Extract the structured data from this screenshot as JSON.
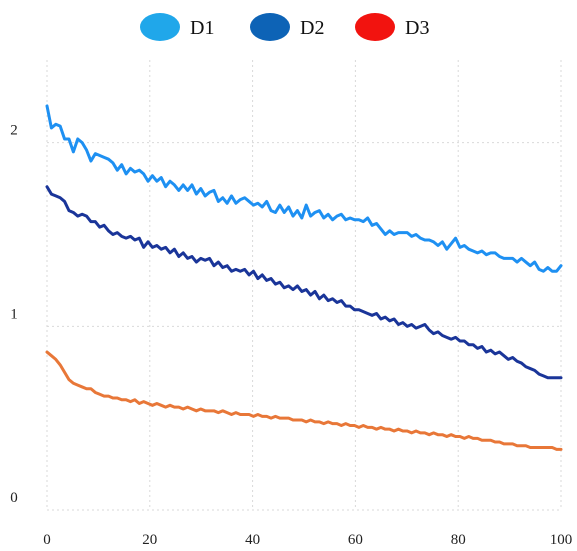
{
  "chart_data": {
    "type": "line",
    "title": "",
    "xlabel": "",
    "ylabel": "",
    "xlim": [
      0,
      100
    ],
    "ylim": [
      0,
      2.45
    ],
    "x_ticks": [
      0,
      20,
      40,
      60,
      80,
      100
    ],
    "x_tick_labels": [
      "0",
      "20",
      "40",
      "60",
      "80",
      "100"
    ],
    "y_ticks": [
      0,
      1,
      2
    ],
    "y_tick_labels": [
      "0",
      "1",
      "2"
    ],
    "grid": true,
    "legend": {
      "placement": "top-center",
      "entries": [
        {
          "name": "D1",
          "marker_color": "#20a7ea"
        },
        {
          "name": "D2",
          "marker_color": "#0d63b6"
        },
        {
          "name": "D3",
          "marker_color": "#f2130f"
        }
      ]
    },
    "x_step": 1,
    "series": [
      {
        "name": "D1",
        "color": "#1e90f2",
        "values": [
          2.2,
          2.08,
          2.1,
          2.09,
          2.02,
          2.02,
          1.95,
          2.02,
          2.0,
          1.96,
          1.9,
          1.94,
          1.93,
          1.92,
          1.91,
          1.89,
          1.85,
          1.88,
          1.83,
          1.86,
          1.84,
          1.85,
          1.83,
          1.79,
          1.82,
          1.79,
          1.81,
          1.76,
          1.79,
          1.77,
          1.74,
          1.77,
          1.74,
          1.77,
          1.72,
          1.75,
          1.71,
          1.73,
          1.74,
          1.68,
          1.7,
          1.67,
          1.71,
          1.67,
          1.69,
          1.7,
          1.68,
          1.66,
          1.67,
          1.65,
          1.68,
          1.63,
          1.62,
          1.66,
          1.62,
          1.65,
          1.6,
          1.63,
          1.59,
          1.66,
          1.6,
          1.62,
          1.63,
          1.59,
          1.61,
          1.58,
          1.6,
          1.61,
          1.58,
          1.59,
          1.58,
          1.58,
          1.57,
          1.59,
          1.55,
          1.56,
          1.53,
          1.5,
          1.52,
          1.5,
          1.51,
          1.51,
          1.51,
          1.49,
          1.5,
          1.48,
          1.47,
          1.47,
          1.46,
          1.44,
          1.46,
          1.42,
          1.45,
          1.48,
          1.43,
          1.44,
          1.42,
          1.41,
          1.4,
          1.41,
          1.39,
          1.4,
          1.4,
          1.38,
          1.37,
          1.37,
          1.37,
          1.35,
          1.37,
          1.35,
          1.33,
          1.35,
          1.31,
          1.3,
          1.32,
          1.3,
          1.3,
          1.33
        ]
      },
      {
        "name": "D2",
        "color": "#1a3599",
        "values": [
          1.76,
          1.72,
          1.71,
          1.7,
          1.68,
          1.63,
          1.62,
          1.6,
          1.61,
          1.6,
          1.57,
          1.57,
          1.54,
          1.55,
          1.52,
          1.5,
          1.51,
          1.49,
          1.48,
          1.49,
          1.47,
          1.48,
          1.43,
          1.46,
          1.43,
          1.44,
          1.42,
          1.43,
          1.4,
          1.42,
          1.38,
          1.4,
          1.37,
          1.38,
          1.35,
          1.37,
          1.36,
          1.37,
          1.33,
          1.35,
          1.32,
          1.33,
          1.3,
          1.31,
          1.3,
          1.31,
          1.28,
          1.3,
          1.26,
          1.28,
          1.25,
          1.26,
          1.23,
          1.24,
          1.21,
          1.22,
          1.2,
          1.22,
          1.19,
          1.2,
          1.17,
          1.19,
          1.15,
          1.17,
          1.14,
          1.15,
          1.13,
          1.14,
          1.11,
          1.11,
          1.09,
          1.09,
          1.08,
          1.07,
          1.06,
          1.07,
          1.04,
          1.05,
          1.03,
          1.04,
          1.01,
          1.02,
          1.0,
          1.01,
          0.99,
          1.0,
          1.01,
          0.98,
          0.96,
          0.97,
          0.95,
          0.94,
          0.93,
          0.94,
          0.92,
          0.92,
          0.9,
          0.9,
          0.88,
          0.89,
          0.86,
          0.87,
          0.85,
          0.86,
          0.84,
          0.82,
          0.83,
          0.81,
          0.8,
          0.78,
          0.77,
          0.76,
          0.74,
          0.73,
          0.72,
          0.72,
          0.72,
          0.72
        ]
      },
      {
        "name": "D3",
        "color": "#e87738",
        "values": [
          0.86,
          0.84,
          0.82,
          0.79,
          0.75,
          0.71,
          0.69,
          0.68,
          0.67,
          0.66,
          0.66,
          0.64,
          0.63,
          0.62,
          0.62,
          0.61,
          0.61,
          0.6,
          0.6,
          0.59,
          0.6,
          0.58,
          0.59,
          0.58,
          0.57,
          0.58,
          0.57,
          0.56,
          0.57,
          0.56,
          0.56,
          0.55,
          0.56,
          0.55,
          0.54,
          0.55,
          0.54,
          0.54,
          0.54,
          0.53,
          0.54,
          0.53,
          0.52,
          0.53,
          0.52,
          0.52,
          0.52,
          0.51,
          0.52,
          0.51,
          0.51,
          0.5,
          0.51,
          0.5,
          0.5,
          0.5,
          0.49,
          0.49,
          0.49,
          0.48,
          0.49,
          0.48,
          0.48,
          0.47,
          0.48,
          0.47,
          0.47,
          0.46,
          0.47,
          0.46,
          0.46,
          0.45,
          0.46,
          0.45,
          0.45,
          0.44,
          0.45,
          0.44,
          0.44,
          0.43,
          0.44,
          0.43,
          0.43,
          0.42,
          0.43,
          0.42,
          0.42,
          0.41,
          0.42,
          0.41,
          0.41,
          0.4,
          0.41,
          0.4,
          0.4,
          0.39,
          0.4,
          0.39,
          0.39,
          0.38,
          0.38,
          0.38,
          0.37,
          0.37,
          0.36,
          0.36,
          0.36,
          0.35,
          0.35,
          0.35,
          0.34,
          0.34,
          0.34,
          0.34,
          0.34,
          0.34,
          0.33,
          0.33
        ]
      }
    ]
  }
}
